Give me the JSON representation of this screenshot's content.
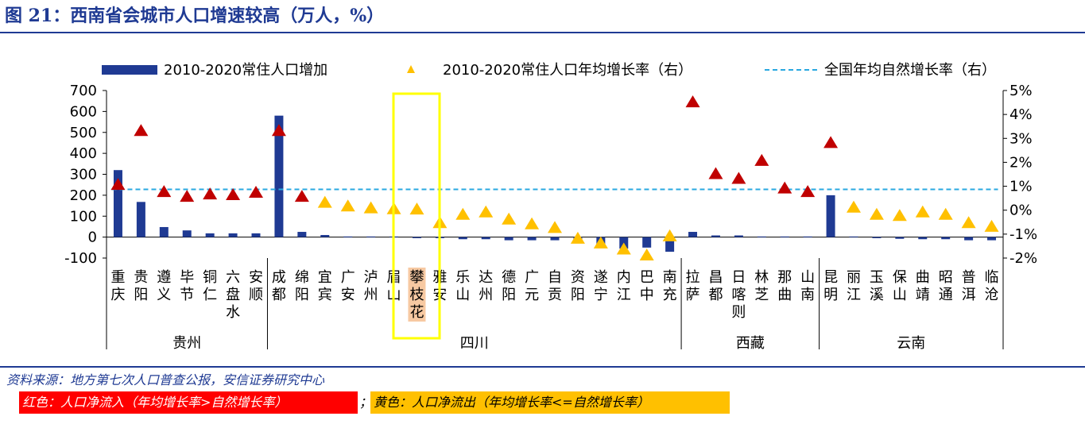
{
  "figure_title": "图 21：西南省会城市人口增速较高（万人，%）",
  "source": "资料来源：地方第七次人口普查公报，安信证券研究中心",
  "note_red": "红色：人口净流入（年均增长率>自然增长率）",
  "note_separator": "；",
  "note_yellow": "黄色：人口净流出（年均增长率<=自然增长率）",
  "colors": {
    "bar": "#1f3a93",
    "inflow": "#c00000",
    "outflow": "#ffc000",
    "national_line": "#29a8e0",
    "highlight_box": "#ffff00"
  },
  "chart_data": {
    "type": "bar",
    "legend": {
      "placement": "top",
      "bar": "2010-2020常住人口增加",
      "triangle": "2010-2020常住人口年均增长率（右）",
      "line": "全国年均自然增长率（右）"
    },
    "categories": [
      {
        "name": "重庆",
        "lines": [
          "重",
          "庆"
        ],
        "increase": 320,
        "rate": 1.05,
        "color": "inflow"
      },
      {
        "name": "贵阳",
        "lines": [
          "贵",
          "阳"
        ],
        "increase": 168,
        "rate": 3.3,
        "color": "inflow"
      },
      {
        "name": "遵义",
        "lines": [
          "遵",
          "义"
        ],
        "increase": 48,
        "rate": 0.75,
        "color": "inflow"
      },
      {
        "name": "毕节",
        "lines": [
          "毕",
          "节"
        ],
        "increase": 32,
        "rate": 0.55,
        "color": "inflow"
      },
      {
        "name": "铜仁",
        "lines": [
          "铜",
          "仁"
        ],
        "increase": 18,
        "rate": 0.65,
        "color": "inflow"
      },
      {
        "name": "六盘水",
        "lines": [
          "六",
          "盘",
          "水"
        ],
        "increase": 18,
        "rate": 0.62,
        "color": "inflow"
      },
      {
        "name": "安顺",
        "lines": [
          "安",
          "顺"
        ],
        "increase": 18,
        "rate": 0.72,
        "color": "inflow"
      },
      {
        "name": "成都",
        "lines": [
          "成",
          "都"
        ],
        "increase": 580,
        "rate": 3.3,
        "color": "inflow"
      },
      {
        "name": "绵阳",
        "lines": [
          "绵",
          "阳"
        ],
        "increase": 25,
        "rate": 0.55,
        "color": "inflow"
      },
      {
        "name": "宜宾",
        "lines": [
          "宜",
          "宾"
        ],
        "increase": 10,
        "rate": 0.3,
        "color": "outflow"
      },
      {
        "name": "广安",
        "lines": [
          "广",
          "安"
        ],
        "increase": 3,
        "rate": 0.15,
        "color": "outflow"
      },
      {
        "name": "泸州",
        "lines": [
          "泸",
          "州"
        ],
        "increase": 3,
        "rate": 0.07,
        "color": "outflow"
      },
      {
        "name": "眉山",
        "lines": [
          "眉",
          "山"
        ],
        "increase": 3,
        "rate": 0.03,
        "color": "outflow"
      },
      {
        "name": "攀枝花",
        "lines": [
          "攀",
          "枝",
          "花"
        ],
        "increase": -5,
        "rate": 0.02,
        "color": "outflow",
        "highlight": true
      },
      {
        "name": "雅安",
        "lines": [
          "雅",
          "安"
        ],
        "increase": -5,
        "rate": -0.55,
        "color": "outflow"
      },
      {
        "name": "乐山",
        "lines": [
          "乐",
          "山"
        ],
        "increase": -10,
        "rate": -0.2,
        "color": "outflow"
      },
      {
        "name": "达州",
        "lines": [
          "达",
          "州"
        ],
        "increase": -10,
        "rate": -0.1,
        "color": "outflow"
      },
      {
        "name": "德阳",
        "lines": [
          "德",
          "阳"
        ],
        "increase": -15,
        "rate": -0.4,
        "color": "outflow"
      },
      {
        "name": "广元",
        "lines": [
          "广",
          "元"
        ],
        "increase": -15,
        "rate": -0.6,
        "color": "outflow"
      },
      {
        "name": "自贡",
        "lines": [
          "自",
          "贡"
        ],
        "increase": -15,
        "rate": -0.75,
        "color": "outflow"
      },
      {
        "name": "资阳",
        "lines": [
          "资",
          "阳"
        ],
        "increase": -30,
        "rate": -1.2,
        "color": "outflow"
      },
      {
        "name": "遂宁",
        "lines": [
          "遂",
          "宁"
        ],
        "increase": -45,
        "rate": -1.4,
        "color": "outflow"
      },
      {
        "name": "内江",
        "lines": [
          "内",
          "江"
        ],
        "increase": -55,
        "rate": -1.65,
        "color": "outflow"
      },
      {
        "name": "巴中",
        "lines": [
          "巴",
          "中"
        ],
        "increase": -50,
        "rate": -1.9,
        "color": "outflow"
      },
      {
        "name": "南充",
        "lines": [
          "南",
          "充"
        ],
        "increase": -70,
        "rate": -1.1,
        "color": "outflow"
      },
      {
        "name": "拉萨",
        "lines": [
          "拉",
          "萨"
        ],
        "increase": 25,
        "rate": 4.5,
        "color": "inflow"
      },
      {
        "name": "昌都",
        "lines": [
          "昌",
          "都"
        ],
        "increase": 8,
        "rate": 1.5,
        "color": "inflow"
      },
      {
        "name": "日喀则",
        "lines": [
          "日",
          "喀",
          "则"
        ],
        "increase": 8,
        "rate": 1.3,
        "color": "inflow"
      },
      {
        "name": "林芝",
        "lines": [
          "林",
          "芝"
        ],
        "increase": 3,
        "rate": 2.05,
        "color": "inflow"
      },
      {
        "name": "那曲",
        "lines": [
          "那",
          "曲"
        ],
        "increase": 3,
        "rate": 0.9,
        "color": "inflow"
      },
      {
        "name": "山南",
        "lines": [
          "山",
          "南"
        ],
        "increase": 3,
        "rate": 0.75,
        "color": "inflow"
      },
      {
        "name": "昆明",
        "lines": [
          "昆",
          "明"
        ],
        "increase": 200,
        "rate": 2.8,
        "color": "inflow"
      },
      {
        "name": "丽江",
        "lines": [
          "丽",
          "江"
        ],
        "increase": 3,
        "rate": 0.1,
        "color": "outflow"
      },
      {
        "name": "玉溪",
        "lines": [
          "玉",
          "溪"
        ],
        "increase": -5,
        "rate": -0.2,
        "color": "outflow"
      },
      {
        "name": "保山",
        "lines": [
          "保",
          "山"
        ],
        "increase": -8,
        "rate": -0.25,
        "color": "outflow"
      },
      {
        "name": "曲靖",
        "lines": [
          "曲",
          "靖"
        ],
        "increase": -10,
        "rate": -0.1,
        "color": "outflow"
      },
      {
        "name": "昭通",
        "lines": [
          "昭",
          "通"
        ],
        "increase": -10,
        "rate": -0.2,
        "color": "outflow"
      },
      {
        "name": "普洱",
        "lines": [
          "普",
          "洱"
        ],
        "increase": -15,
        "rate": -0.55,
        "color": "outflow"
      },
      {
        "name": "临沧",
        "lines": [
          "临",
          "沧"
        ],
        "increase": -15,
        "rate": -0.7,
        "color": "outflow"
      }
    ],
    "national_natural_rate": 0.87,
    "y_left": {
      "min": -100,
      "max": 700,
      "ticks": [
        -100,
        0,
        100,
        200,
        300,
        400,
        500,
        600,
        700
      ]
    },
    "y_right": {
      "min": -2,
      "max": 5,
      "ticks": [
        -2,
        -1,
        0,
        1,
        2,
        3,
        4,
        5
      ],
      "tick_labels": [
        "-2%",
        "-1%",
        "0%",
        "1%",
        "2%",
        "3%",
        "4%",
        "5%"
      ]
    },
    "groups": [
      {
        "name": "贵州",
        "start": 0,
        "end": 6
      },
      {
        "name": "四川",
        "start": 7,
        "end": 24
      },
      {
        "name": "西藏",
        "start": 25,
        "end": 30
      },
      {
        "name": "云南",
        "start": 31,
        "end": 38
      }
    ]
  }
}
